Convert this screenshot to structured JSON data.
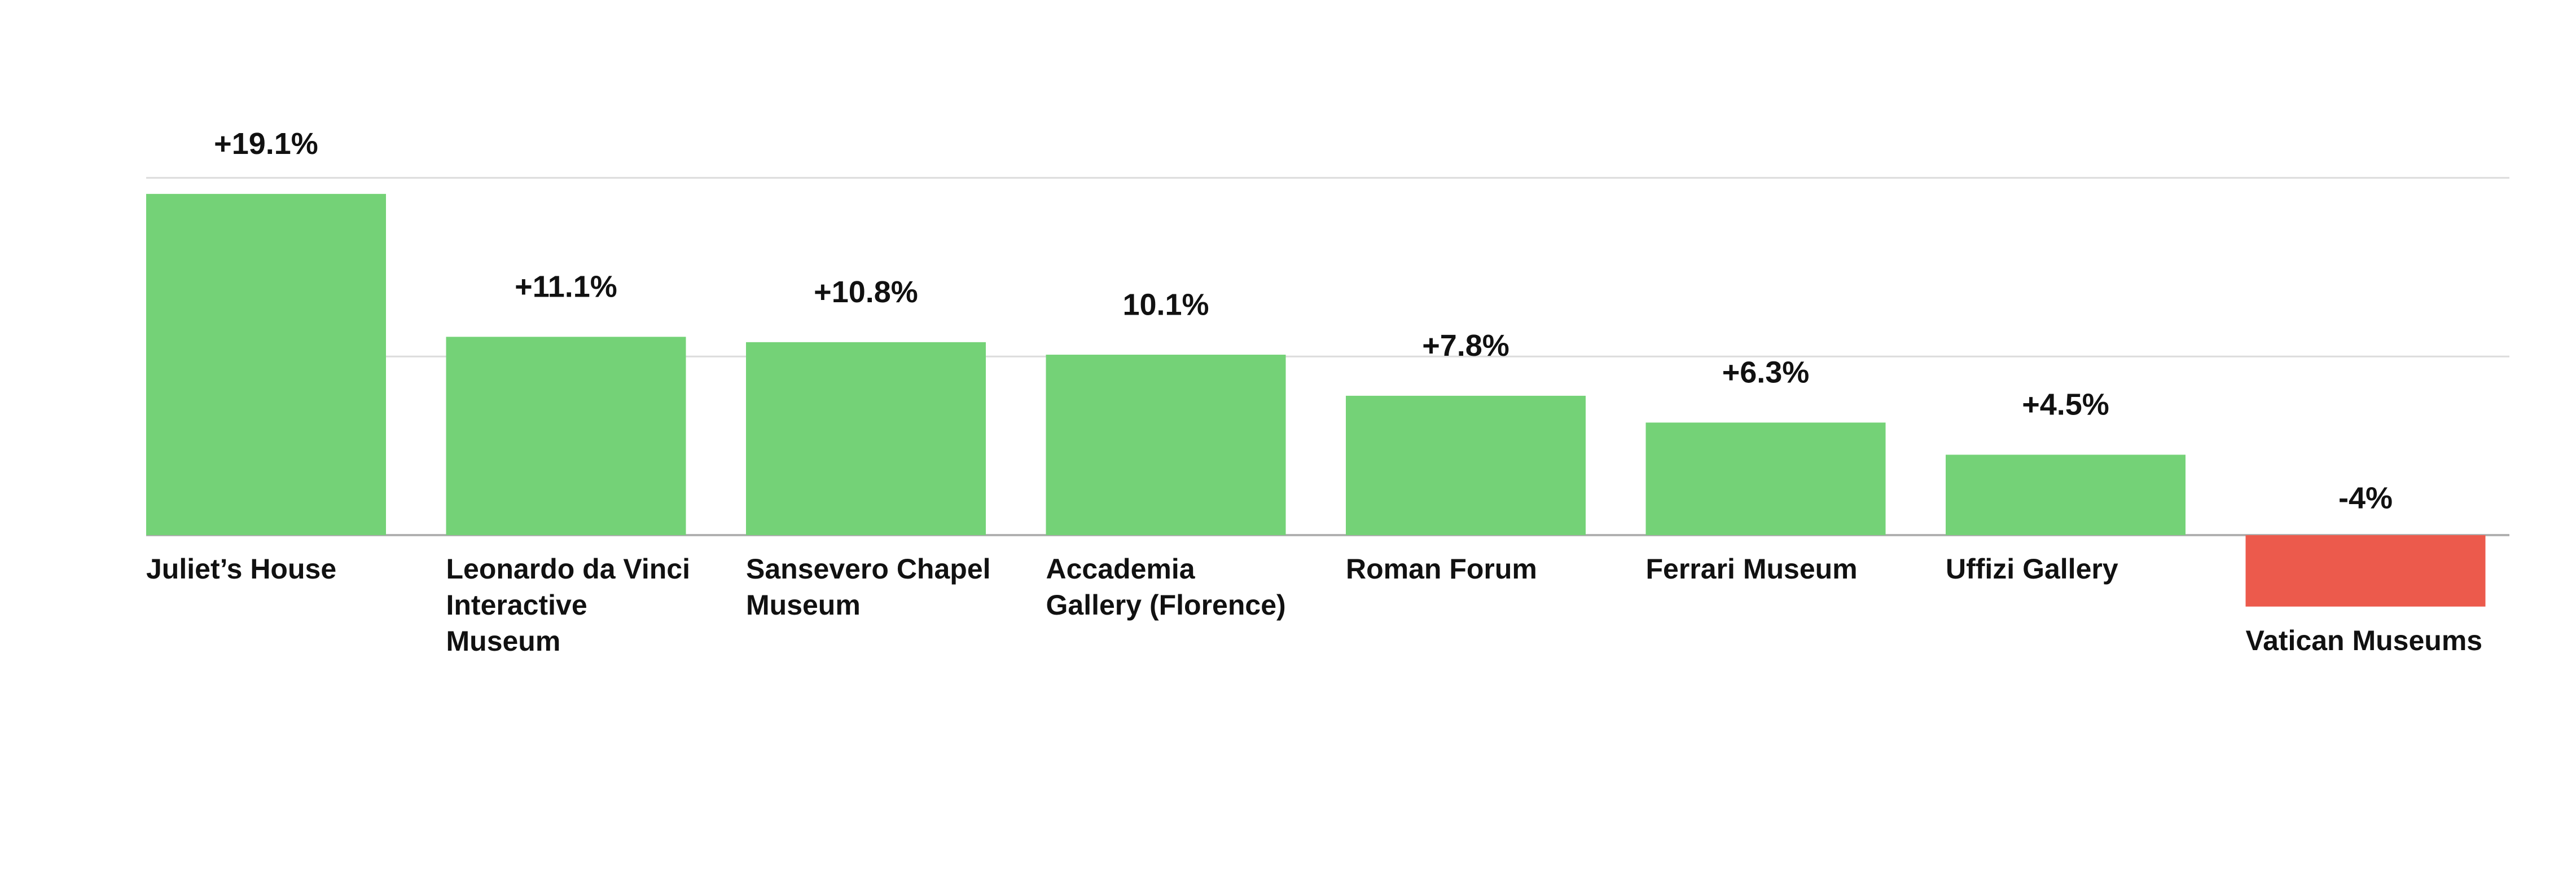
{
  "chart_data": {
    "type": "bar",
    "categories": [
      "Juliet’s House",
      "Leonardo da Vinci Interactive Museum",
      "Sansevero Chapel Museum",
      "Accademia Gallery (Florence)",
      "Roman Forum",
      "Ferrari Museum",
      "Uffizi Gallery",
      "Vatican Museums"
    ],
    "values": [
      19.1,
      11.1,
      10.8,
      10.1,
      7.8,
      6.3,
      4.5,
      -4
    ],
    "value_labels": [
      "+19.1%",
      "+11.1%",
      "+10.8%",
      "10.1%",
      "+7.8%",
      "+6.3%",
      "+4.5%",
      "-4%"
    ],
    "colors": {
      "positive": "#74d277",
      "negative": "#ec5a4c"
    },
    "ylim": [
      -19,
      22
    ],
    "yticks": [
      0,
      10,
      20
    ],
    "grid": true
  }
}
